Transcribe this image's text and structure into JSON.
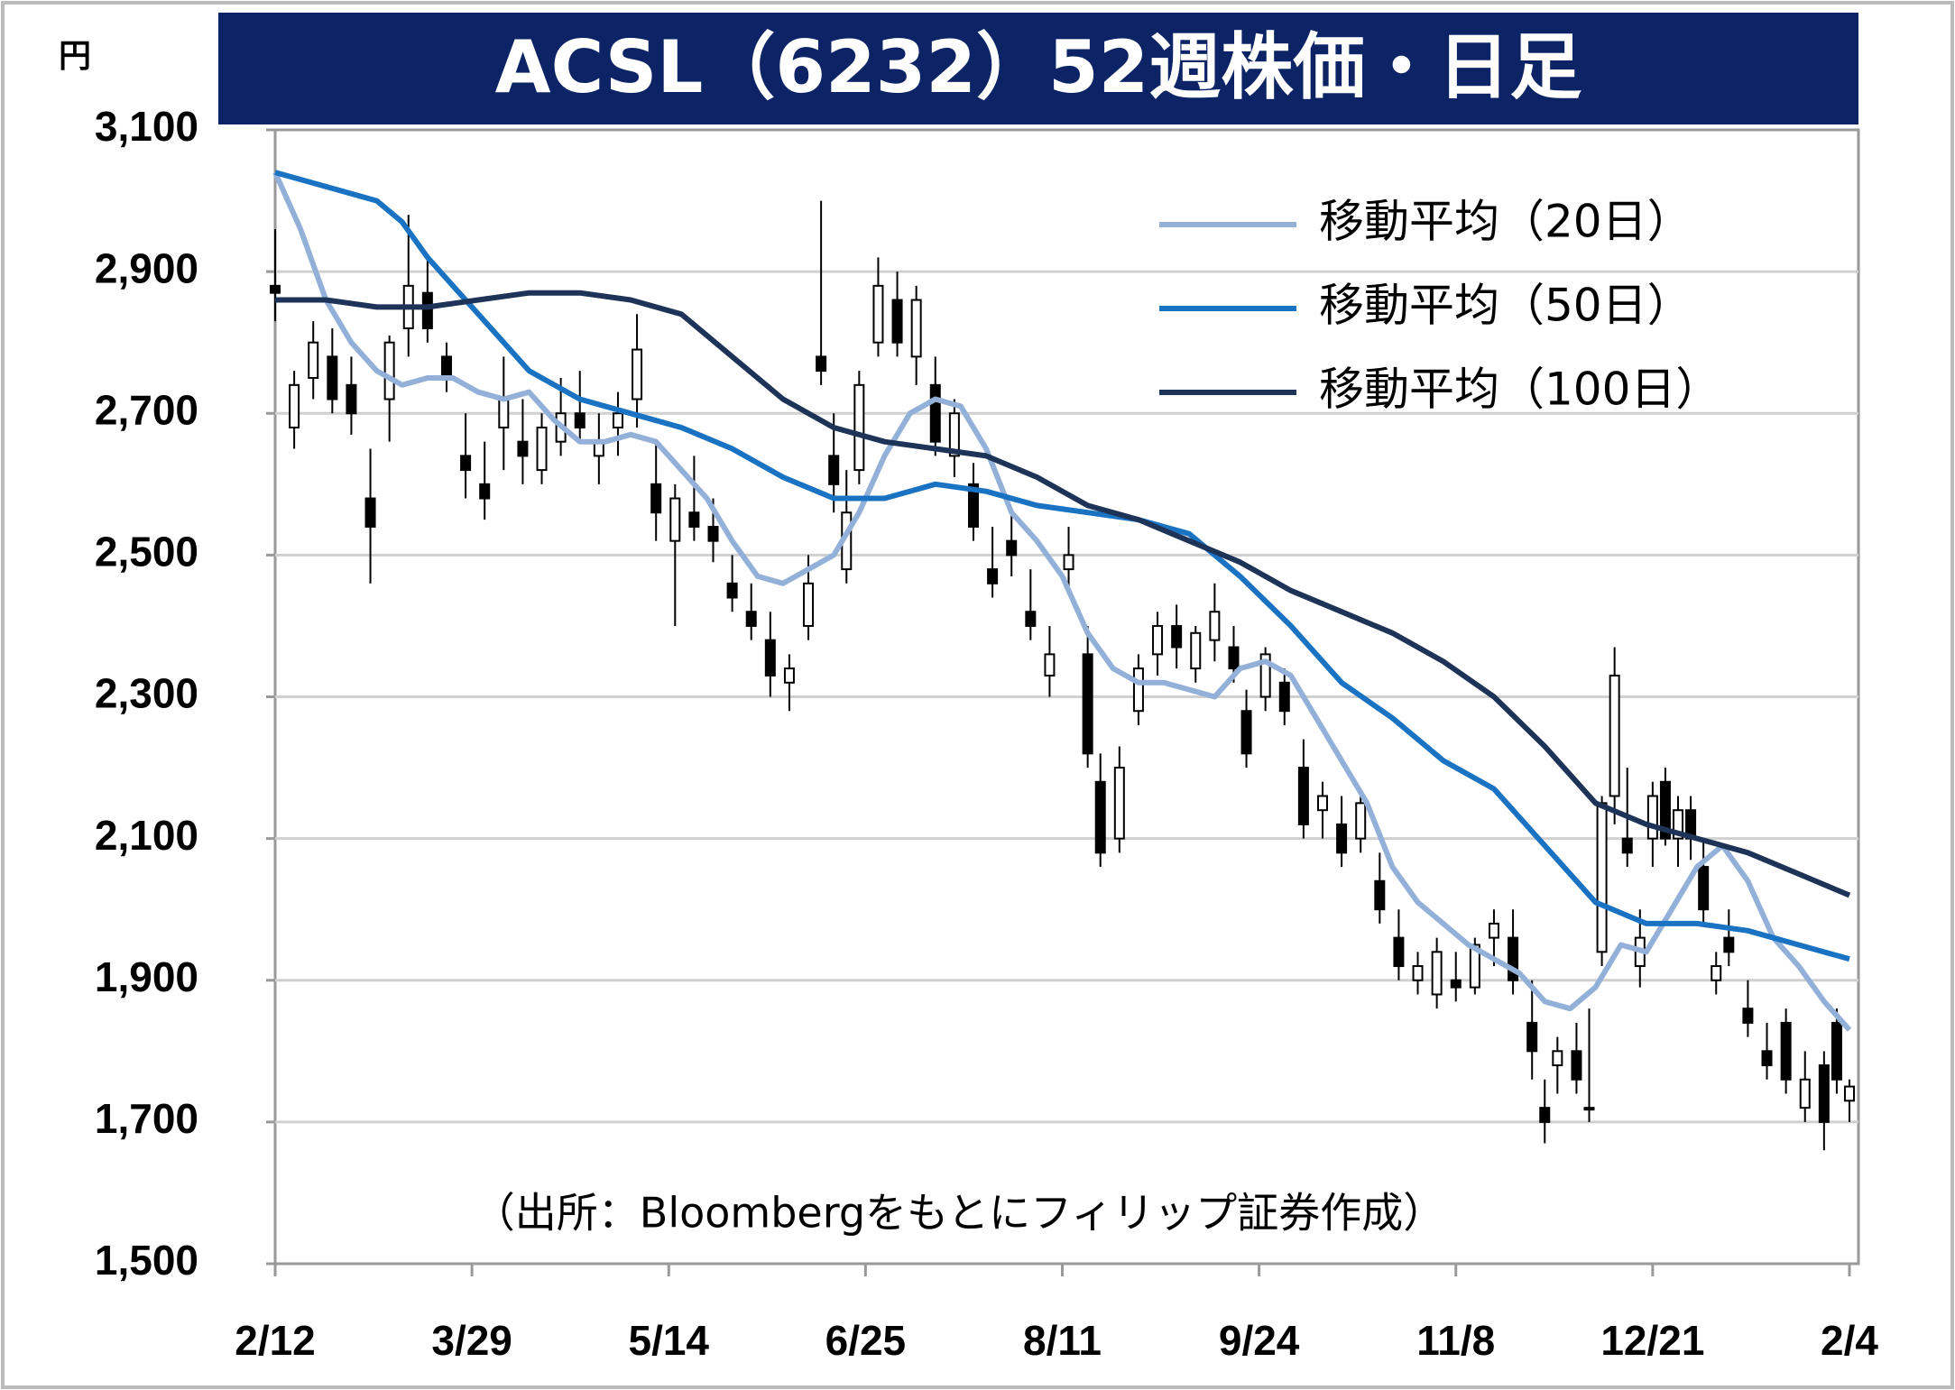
{
  "chart_data": {
    "type": "candlestick",
    "title": "ACSL（6232）52週株価・日足",
    "y_unit": "円",
    "source": "（出所：Bloombergをもとにフィリップ証券作成）",
    "ylim": [
      1500,
      3100
    ],
    "yticks": [
      {
        "value": 1500,
        "label": "1,500"
      },
      {
        "value": 1700,
        "label": "1,700"
      },
      {
        "value": 1900,
        "label": "1,900"
      },
      {
        "value": 2100,
        "label": "2,100"
      },
      {
        "value": 2300,
        "label": "2,300"
      },
      {
        "value": 2500,
        "label": "2,500"
      },
      {
        "value": 2700,
        "label": "2,700"
      },
      {
        "value": 2900,
        "label": "2,900"
      },
      {
        "value": 3100,
        "label": "3,100"
      }
    ],
    "xlim": [
      0,
      248
    ],
    "xticks": [
      {
        "value": 0,
        "label": "2/12"
      },
      {
        "value": 31,
        "label": "3/29"
      },
      {
        "value": 62,
        "label": "5/14"
      },
      {
        "value": 93,
        "label": "6/25"
      },
      {
        "value": 124,
        "label": "8/11"
      },
      {
        "value": 155,
        "label": "9/24"
      },
      {
        "value": 186,
        "label": "11/8"
      },
      {
        "value": 217,
        "label": "12/21"
      },
      {
        "value": 248,
        "label": "2/4"
      }
    ],
    "grid": true,
    "up_color": "#ffffff",
    "down_color": "#000000",
    "candles": {
      "x": [
        0,
        3,
        6,
        9,
        12,
        15,
        18,
        21,
        24,
        27,
        30,
        33,
        36,
        39,
        42,
        45,
        48,
        51,
        54,
        57,
        60,
        63,
        66,
        69,
        72,
        75,
        78,
        81,
        84,
        86,
        88,
        90,
        92,
        95,
        98,
        101,
        104,
        107,
        110,
        113,
        116,
        119,
        122,
        125,
        128,
        130,
        133,
        136,
        139,
        142,
        145,
        148,
        151,
        153,
        156,
        159,
        162,
        165,
        168,
        171,
        174,
        177,
        180,
        183,
        186,
        189,
        192,
        195,
        198,
        200,
        202,
        205,
        207,
        209,
        211,
        213,
        215,
        217,
        219,
        221,
        223,
        225,
        227,
        229,
        232,
        235,
        238,
        241,
        244,
        246,
        248
      ],
      "open": [
        2880,
        2680,
        2750,
        2780,
        2740,
        2580,
        2720,
        2820,
        2870,
        2780,
        2640,
        2600,
        2680,
        2660,
        2620,
        2660,
        2700,
        2640,
        2680,
        2720,
        2600,
        2520,
        2560,
        2540,
        2460,
        2420,
        2380,
        2320,
        2400,
        2780,
        2640,
        2480,
        2620,
        2800,
        2860,
        2780,
        2740,
        2640,
        2600,
        2480,
        2520,
        2420,
        2330,
        2480,
        2360,
        2180,
        2100,
        2280,
        2360,
        2400,
        2340,
        2380,
        2370,
        2280,
        2300,
        2320,
        2200,
        2140,
        2120,
        2100,
        2040,
        1960,
        1900,
        1880,
        1900,
        1890,
        1960,
        1960,
        1840,
        1720,
        1780,
        1800,
        1720,
        1940,
        2160,
        2100,
        1920,
        2100,
        2180,
        2100,
        2140,
        2060,
        1900,
        1960,
        1860,
        1800,
        1840,
        1720,
        1780,
        1840,
        1730
      ],
      "high": [
        2960,
        2760,
        2830,
        2820,
        2780,
        2650,
        2810,
        2980,
        2920,
        2800,
        2700,
        2660,
        2780,
        2720,
        2700,
        2750,
        2760,
        2700,
        2730,
        2840,
        2660,
        2600,
        2640,
        2580,
        2500,
        2460,
        2420,
        2360,
        2500,
        3000,
        2700,
        2620,
        2760,
        2920,
        2900,
        2880,
        2780,
        2720,
        2630,
        2540,
        2560,
        2480,
        2400,
        2540,
        2400,
        2220,
        2230,
        2360,
        2420,
        2430,
        2400,
        2460,
        2400,
        2310,
        2370,
        2340,
        2240,
        2180,
        2160,
        2160,
        2080,
        2000,
        1940,
        1960,
        1940,
        1960,
        2000,
        2000,
        1900,
        1760,
        1820,
        1840,
        1860,
        2160,
        2370,
        2200,
        2000,
        2180,
        2200,
        2160,
        2160,
        2100,
        1940,
        2000,
        1900,
        1840,
        1860,
        1800,
        1800,
        1860,
        1760
      ],
      "low": [
        2830,
        2650,
        2720,
        2700,
        2670,
        2460,
        2660,
        2780,
        2800,
        2730,
        2580,
        2550,
        2620,
        2600,
        2600,
        2640,
        2660,
        2600,
        2640,
        2680,
        2520,
        2400,
        2520,
        2490,
        2420,
        2380,
        2300,
        2280,
        2380,
        2740,
        2560,
        2460,
        2600,
        2780,
        2780,
        2740,
        2640,
        2610,
        2520,
        2440,
        2470,
        2380,
        2300,
        2450,
        2200,
        2060,
        2080,
        2260,
        2330,
        2340,
        2320,
        2350,
        2320,
        2200,
        2280,
        2260,
        2100,
        2100,
        2060,
        2080,
        1980,
        1900,
        1880,
        1860,
        1870,
        1880,
        1920,
        1880,
        1760,
        1670,
        1740,
        1740,
        1700,
        1920,
        2120,
        2060,
        1890,
        2060,
        2090,
        2060,
        2070,
        1980,
        1880,
        1920,
        1820,
        1760,
        1740,
        1700,
        1660,
        1740,
        1700
      ],
      "close": [
        2870,
        2740,
        2800,
        2720,
        2700,
        2540,
        2800,
        2880,
        2820,
        2750,
        2620,
        2580,
        2720,
        2640,
        2680,
        2700,
        2680,
        2660,
        2700,
        2790,
        2560,
        2580,
        2540,
        2520,
        2440,
        2400,
        2330,
        2340,
        2460,
        2760,
        2600,
        2560,
        2740,
        2880,
        2800,
        2860,
        2660,
        2700,
        2540,
        2460,
        2500,
        2400,
        2360,
        2500,
        2220,
        2080,
        2200,
        2340,
        2400,
        2370,
        2390,
        2420,
        2340,
        2220,
        2360,
        2280,
        2120,
        2160,
        2080,
        2150,
        2000,
        1920,
        1920,
        1940,
        1890,
        1950,
        1980,
        1900,
        1800,
        1700,
        1800,
        1760,
        1720,
        2150,
        2330,
        2080,
        1960,
        2160,
        2100,
        2140,
        2100,
        2000,
        1920,
        1940,
        1840,
        1780,
        1760,
        1760,
        1700,
        1760,
        1750
      ]
    },
    "legend": "upper right",
    "series": [
      {
        "name": "移動平均（20日）",
        "color": "#93b1d8",
        "x": [
          0,
          4,
          8,
          12,
          16,
          20,
          24,
          28,
          32,
          36,
          40,
          44,
          48,
          52,
          56,
          60,
          64,
          68,
          72,
          76,
          80,
          84,
          88,
          92,
          96,
          100,
          104,
          108,
          112,
          116,
          120,
          124,
          128,
          132,
          136,
          140,
          144,
          148,
          152,
          156,
          160,
          164,
          168,
          172,
          176,
          180,
          184,
          188,
          192,
          196,
          200,
          204,
          208,
          212,
          216,
          220,
          224,
          228,
          232,
          236,
          240,
          244,
          248
        ],
        "values": [
          3040,
          2960,
          2860,
          2800,
          2760,
          2740,
          2750,
          2750,
          2730,
          2720,
          2730,
          2690,
          2660,
          2660,
          2670,
          2660,
          2620,
          2580,
          2520,
          2470,
          2460,
          2480,
          2500,
          2560,
          2640,
          2700,
          2720,
          2710,
          2650,
          2560,
          2520,
          2470,
          2390,
          2340,
          2320,
          2320,
          2310,
          2300,
          2340,
          2350,
          2330,
          2270,
          2210,
          2150,
          2060,
          2010,
          1980,
          1950,
          1930,
          1910,
          1870,
          1860,
          1890,
          1950,
          1940,
          2000,
          2060,
          2090,
          2040,
          1960,
          1920,
          1870,
          1830
        ]
      },
      {
        "name": "移動平均（50日）",
        "color": "#1a73c2",
        "x": [
          0,
          8,
          16,
          20,
          24,
          32,
          40,
          48,
          56,
          64,
          72,
          80,
          88,
          96,
          104,
          112,
          120,
          128,
          136,
          144,
          152,
          160,
          168,
          176,
          184,
          192,
          200,
          208,
          216,
          224,
          232,
          240,
          248
        ],
        "values": [
          3040,
          3020,
          3000,
          2970,
          2920,
          2840,
          2760,
          2720,
          2700,
          2680,
          2650,
          2610,
          2580,
          2580,
          2600,
          2590,
          2570,
          2560,
          2550,
          2530,
          2470,
          2400,
          2320,
          2270,
          2210,
          2170,
          2090,
          2010,
          1980,
          1980,
          1970,
          1950,
          1930
        ]
      },
      {
        "name": "移動平均（100日）",
        "color": "#1e3358",
        "x": [
          0,
          8,
          16,
          24,
          32,
          40,
          48,
          56,
          64,
          72,
          80,
          88,
          96,
          104,
          112,
          120,
          128,
          136,
          144,
          152,
          160,
          168,
          176,
          184,
          192,
          200,
          208,
          216,
          224,
          232,
          240,
          248
        ],
        "values": [
          2860,
          2860,
          2850,
          2850,
          2860,
          2870,
          2870,
          2860,
          2840,
          2780,
          2720,
          2680,
          2660,
          2650,
          2640,
          2610,
          2570,
          2550,
          2520,
          2490,
          2450,
          2420,
          2390,
          2350,
          2300,
          2230,
          2150,
          2120,
          2100,
          2080,
          2050,
          2020
        ]
      }
    ]
  }
}
